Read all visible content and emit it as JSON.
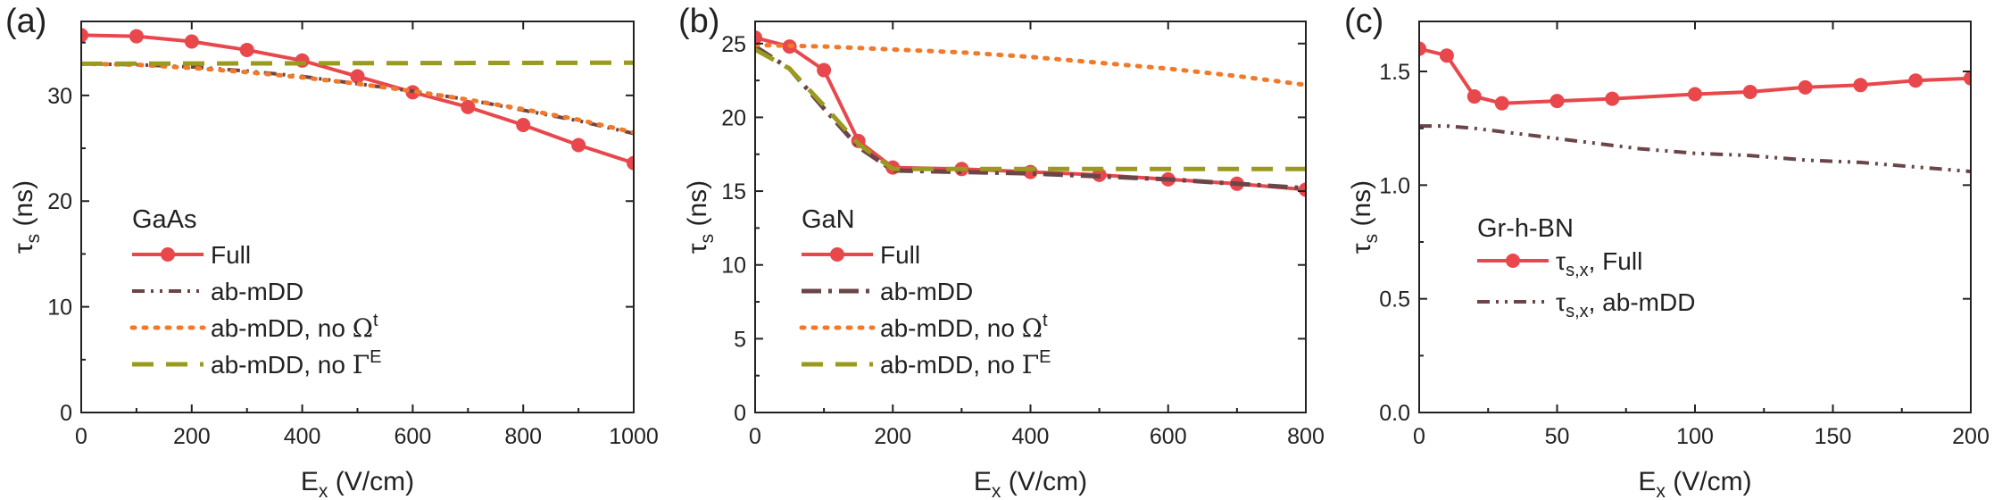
{
  "chart_data": [
    {
      "type": "line",
      "panel": "(a)",
      "title": "GaAs",
      "xlabel_main": "E",
      "xlabel_sub": "x",
      "xlabel_units": " (V/cm)",
      "ylabel_main": "τ",
      "ylabel_sub": "s",
      "ylabel_units": " (ns)",
      "xlim": [
        0,
        1000
      ],
      "ylim": [
        0,
        37
      ],
      "xticks": [
        0,
        200,
        400,
        600,
        800,
        1000
      ],
      "xtick_labels": [
        "0",
        "200",
        "400",
        "600",
        "800",
        "1000"
      ],
      "yticks": [
        0,
        10,
        20,
        30
      ],
      "ytick_labels": [
        "0",
        "10",
        "20",
        "30"
      ],
      "series": [
        {
          "name": "Full",
          "label": "Full",
          "style": "full",
          "color": "#e8474c",
          "x": [
            0,
            100,
            200,
            300,
            400,
            500,
            600,
            700,
            800,
            900,
            1000
          ],
          "y": [
            35.7,
            35.6,
            35.1,
            34.3,
            33.3,
            31.8,
            30.3,
            28.9,
            27.2,
            25.3,
            23.6
          ]
        },
        {
          "name": "ab-mDD",
          "label": "ab-mDD",
          "style": "dashdotdot",
          "color": "#6b4547",
          "x": [
            0,
            100,
            200,
            300,
            400,
            500,
            600,
            700,
            800,
            900,
            1000
          ],
          "y": [
            33.0,
            32.9,
            32.7,
            32.3,
            31.8,
            31.1,
            30.4,
            29.6,
            28.6,
            27.6,
            26.4
          ]
        },
        {
          "name": "ab-mDD, no Omega t",
          "label": "ab-mDD, no ",
          "sym": "Ω",
          "sup": "t",
          "style": "dotted",
          "color": "#f07a2a",
          "x": [
            0,
            100,
            200,
            300,
            400,
            500,
            600,
            700,
            800,
            900,
            1000
          ],
          "y": [
            33.0,
            32.9,
            32.6,
            32.2,
            31.7,
            31.1,
            30.4,
            29.6,
            28.7,
            27.7,
            26.5
          ]
        },
        {
          "name": "ab-mDD, no Gamma E",
          "label": "ab-mDD, no ",
          "sym": "Γ",
          "sup": "E",
          "style": "dashed",
          "color": "#9a9a1e",
          "x": [
            0,
            1000
          ],
          "y": [
            33.0,
            33.1
          ]
        }
      ]
    },
    {
      "type": "line",
      "panel": "(b)",
      "title": "GaN",
      "xlabel_main": "E",
      "xlabel_sub": "x",
      "xlabel_units": " (V/cm)",
      "ylabel_main": "τ",
      "ylabel_sub": "s",
      "ylabel_units": " (ns)",
      "xlim": [
        0,
        800
      ],
      "ylim": [
        0,
        26.5
      ],
      "xticks": [
        0,
        200,
        400,
        600,
        800
      ],
      "xtick_labels": [
        "0",
        "200",
        "400",
        "600",
        "800"
      ],
      "yticks": [
        0,
        5,
        10,
        15,
        20,
        25
      ],
      "ytick_labels": [
        "0",
        "5",
        "10",
        "15",
        "20",
        "25"
      ],
      "series": [
        {
          "name": "Full",
          "label": "Full",
          "style": "full",
          "color": "#e8474c",
          "x": [
            0,
            50,
            100,
            150,
            200,
            300,
            400,
            500,
            600,
            700,
            800
          ],
          "y": [
            25.4,
            24.8,
            23.2,
            18.4,
            16.6,
            16.5,
            16.3,
            16.1,
            15.8,
            15.5,
            15.1
          ]
        },
        {
          "name": "ab-mDD",
          "label": "ab-mDD",
          "style": "dashdot",
          "color": "#6b4547",
          "x": [
            0,
            50,
            100,
            150,
            200,
            300,
            400,
            500,
            600,
            700,
            800
          ],
          "y": [
            24.8,
            23.3,
            20.6,
            18.0,
            16.4,
            16.3,
            16.2,
            16.0,
            15.8,
            15.5,
            15.2
          ]
        },
        {
          "name": "ab-mDD, no Omega t",
          "label": "ab-mDD, no ",
          "sym": "Ω",
          "sup": "t",
          "style": "dotted",
          "color": "#f07a2a",
          "x": [
            0,
            100,
            200,
            300,
            400,
            500,
            600,
            700,
            800
          ],
          "y": [
            24.9,
            24.8,
            24.6,
            24.4,
            24.1,
            23.7,
            23.3,
            22.8,
            22.2
          ]
        },
        {
          "name": "ab-mDD, no Gamma E",
          "label": "ab-mDD, no ",
          "sym": "Γ",
          "sup": "E",
          "style": "dashed",
          "color": "#9a9a1e",
          "x": [
            0,
            50,
            100,
            150,
            200,
            300,
            400,
            500,
            600,
            700,
            800
          ],
          "y": [
            24.6,
            23.3,
            20.8,
            18.2,
            16.5,
            16.5,
            16.5,
            16.5,
            16.5,
            16.5,
            16.5
          ]
        }
      ]
    },
    {
      "type": "line",
      "panel": "(c)",
      "title": "Gr-h-BN",
      "xlabel_main": "E",
      "xlabel_sub": "x",
      "xlabel_units": " (V/cm)",
      "ylabel_main": "τ",
      "ylabel_sub": "s",
      "ylabel_units": " (ns)",
      "xlim": [
        0,
        200
      ],
      "ylim": [
        0,
        1.72
      ],
      "xticks": [
        0,
        50,
        100,
        150,
        200
      ],
      "xtick_labels": [
        "0",
        "50",
        "100",
        "150",
        "200"
      ],
      "yticks": [
        0,
        0.5,
        1.0,
        1.5
      ],
      "ytick_labels": [
        "0.0",
        "0.5",
        "1.0",
        "1.5"
      ],
      "series": [
        {
          "name": "tau s,x Full",
          "label": "τ",
          "sub": "s,x",
          "tail": ", Full",
          "style": "full",
          "color": "#e8474c",
          "x": [
            0,
            10,
            20,
            30,
            50,
            70,
            100,
            120,
            140,
            160,
            180,
            200
          ],
          "y": [
            1.6,
            1.57,
            1.39,
            1.36,
            1.37,
            1.38,
            1.4,
            1.41,
            1.43,
            1.44,
            1.46,
            1.47
          ]
        },
        {
          "name": "tau s,x ab-mDD",
          "label": "τ",
          "sub": "s,x",
          "tail": ", ab-mDD",
          "style": "dashdotdot",
          "color": "#6b4547",
          "x": [
            0,
            10,
            20,
            40,
            60,
            80,
            100,
            120,
            140,
            160,
            180,
            200
          ],
          "y": [
            1.26,
            1.26,
            1.25,
            1.22,
            1.19,
            1.16,
            1.14,
            1.13,
            1.11,
            1.1,
            1.08,
            1.06
          ]
        }
      ]
    }
  ]
}
